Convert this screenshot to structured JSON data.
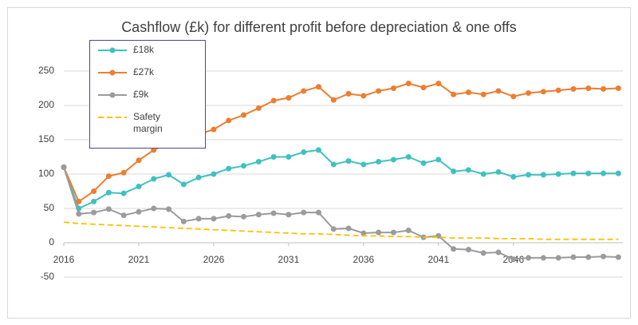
{
  "chart_data": {
    "type": "line",
    "title": "Cashflow (£k) for different profit before depreciation & one offs",
    "x": [
      2016,
      2017,
      2018,
      2019,
      2020,
      2021,
      2022,
      2023,
      2024,
      2025,
      2026,
      2027,
      2028,
      2029,
      2030,
      2031,
      2032,
      2033,
      2034,
      2035,
      2036,
      2037,
      2038,
      2039,
      2040,
      2041,
      2042,
      2043,
      2044,
      2045,
      2046,
      2047,
      2048,
      2049,
      2050,
      2051,
      2052,
      2053
    ],
    "series": [
      {
        "name": "£18k",
        "color": "#3fc1c0",
        "marker": true,
        "dashed": false,
        "values": [
          110,
          50,
          60,
          73,
          72,
          82,
          93,
          99,
          85,
          95,
          100,
          108,
          112,
          118,
          125,
          125,
          132,
          135,
          114,
          119,
          114,
          118,
          121,
          125,
          116,
          121,
          104,
          106,
          100,
          103,
          96,
          99,
          99,
          100,
          101,
          101,
          101,
          101
        ]
      },
      {
        "name": "£27k",
        "color": "#ed7d31",
        "marker": true,
        "dashed": false,
        "values": [
          110,
          60,
          75,
          97,
          102,
          120,
          135,
          145,
          150,
          158,
          165,
          178,
          186,
          196,
          207,
          211,
          221,
          227,
          208,
          217,
          214,
          221,
          225,
          232,
          226,
          232,
          216,
          219,
          216,
          221,
          213,
          218,
          220,
          222,
          224,
          225,
          224,
          225
        ]
      },
      {
        "name": "£9k",
        "color": "#9b9b9b",
        "marker": true,
        "dashed": false,
        "values": [
          110,
          42,
          44,
          49,
          40,
          45,
          50,
          49,
          31,
          35,
          35,
          39,
          38,
          41,
          43,
          41,
          44,
          44,
          20,
          21,
          14,
          15,
          15,
          18,
          8,
          10,
          -9,
          -10,
          -15,
          -14,
          -24,
          -22,
          -22,
          -22,
          -21,
          -21,
          -20,
          -21
        ]
      },
      {
        "name": "Safety margin",
        "color": "#ffc000",
        "marker": false,
        "dashed": true,
        "values": [
          30,
          28,
          27,
          26,
          25,
          24,
          23,
          22,
          21,
          20,
          19,
          18,
          17,
          16,
          15,
          14,
          13,
          13,
          12,
          11,
          10,
          10,
          9,
          9,
          8,
          8,
          7,
          7,
          7,
          6,
          6,
          6,
          5,
          5,
          5,
          5,
          5,
          5
        ]
      }
    ],
    "xlim": [
      2016,
      2053.3
    ],
    "xticks": [
      2016,
      2021,
      2026,
      2031,
      2036,
      2041,
      2046
    ],
    "ylim": [
      -50,
      250
    ],
    "yticks": [
      -50,
      0,
      50,
      100,
      150,
      200,
      250
    ],
    "grid": true,
    "legend": "upper left"
  }
}
